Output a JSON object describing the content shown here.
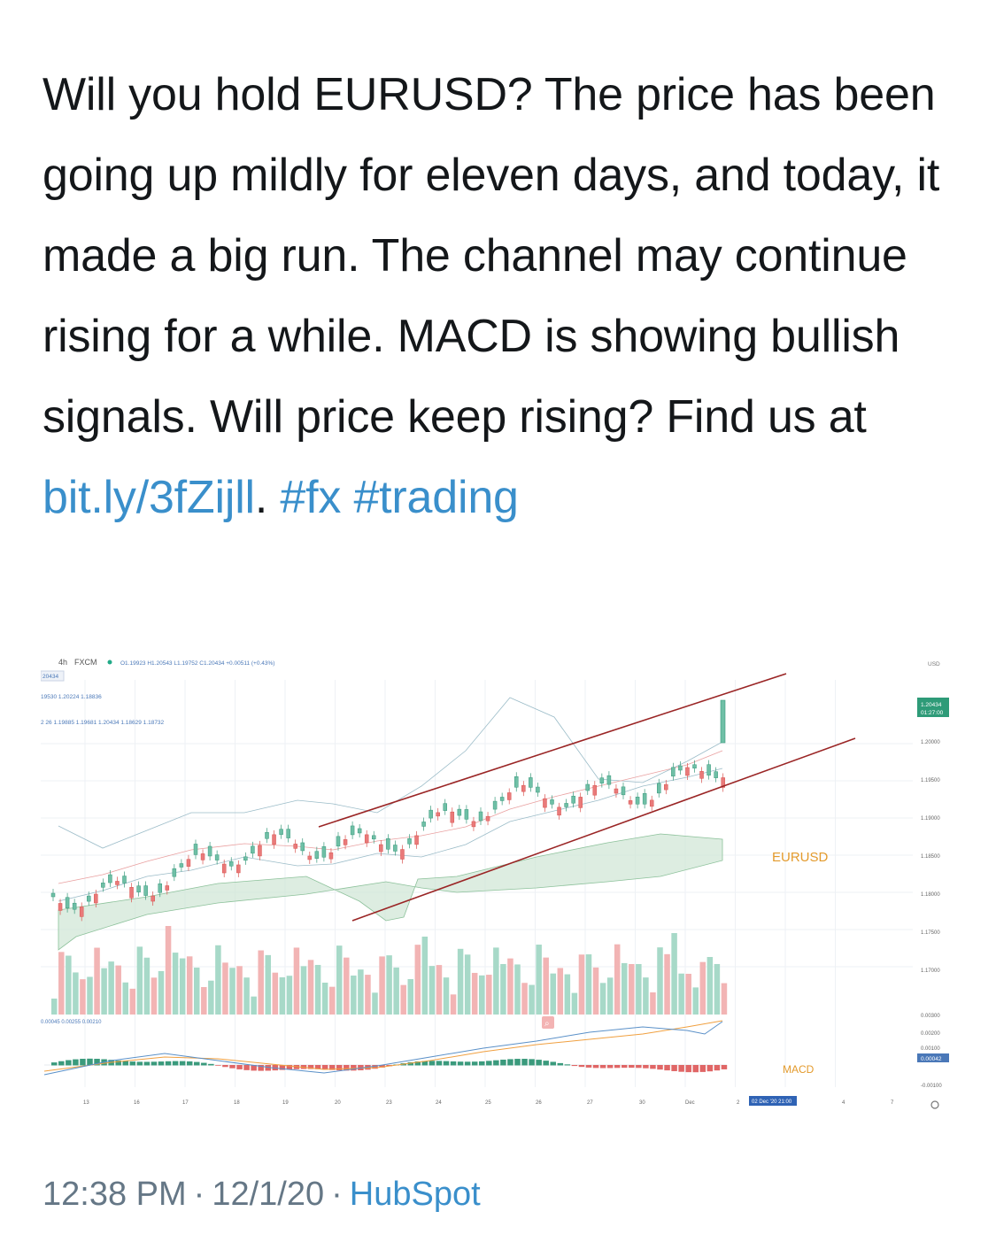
{
  "tweet": {
    "text": "Will you hold EURUSD? The price has been going up mildly for eleven days, and today, it made a big run. The channel may continue rising for a while. MACD is showing bullish signals. Will price keep rising? Find us at",
    "link": "bit.ly/3fZijll",
    "after_link": ".",
    "hashtags": [
      "#fx",
      "#trading"
    ]
  },
  "chart": {
    "header": {
      "interval": "4h",
      "broker": "FXCM",
      "ohlc": "O1.19923 H1.20543 L1.19752 C1.20434 +0.00511 (+0.43%)",
      "badge": "20434",
      "line1": "19530  1.20224  1.18836",
      "line2": "2 26  1.19885  1.19681  1.20434  1.18629  1.18732",
      "currency": "USD"
    },
    "price_axis": {
      "labels": [
        "1.20000",
        "1.19500",
        "1.19000",
        "1.18500",
        "1.18000",
        "1.17500",
        "1.17000"
      ],
      "current_price": "1.20434",
      "countdown": "01:27:00"
    },
    "symbol_label": "EURUSD",
    "macd": {
      "label": "MACD",
      "values_text": "0.00045  0.00255  0.00210",
      "axis_labels": [
        "0.00300",
        "0.00200",
        "0.00100",
        "-0.00100"
      ],
      "current": "0.00042"
    },
    "time_axis": {
      "labels": [
        "13",
        "16",
        "17",
        "18",
        "19",
        "20",
        "23",
        "24",
        "25",
        "26",
        "27",
        "30",
        "Dec",
        "2",
        "4",
        "7"
      ],
      "cursor_label": "02 Dec '20  21:00"
    },
    "colors": {
      "up": "#6fbfa6",
      "down": "#e97a7a",
      "channel": "#9a2525",
      "cloud_green": "#cfe6d4",
      "accent": "#e8a13a"
    }
  },
  "meta": {
    "time": "12:38 PM",
    "date": "12/1/20",
    "separator": "·",
    "source": "HubSpot"
  }
}
